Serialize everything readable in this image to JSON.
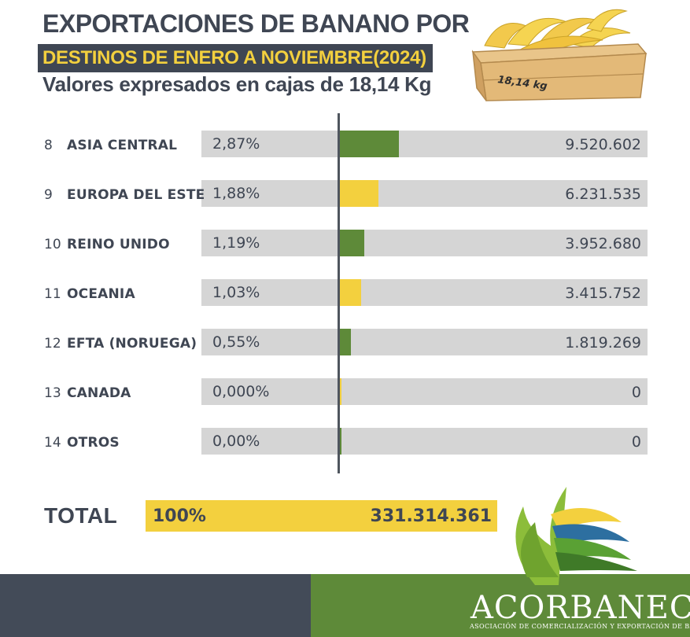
{
  "header": {
    "title_line1": "EXPORTACIONES DE BANANO POR",
    "title_line2": "DESTINOS DE ENERO A NOVIEMBRE(2024)",
    "subtitle": "Valores expresados en cajas de 18,14 Kg",
    "crate_label": "18,14 kg"
  },
  "chart_data": {
    "type": "bar",
    "orientation": "horizontal",
    "rows": [
      {
        "rank": "8",
        "name": "ASIA CENTRAL",
        "pct_label": "2,87%",
        "pct": 2.87,
        "value_label": "9.520.602",
        "value": 9520602,
        "color": "#5e8a39"
      },
      {
        "rank": "9",
        "name": "EUROPA DEL ESTE",
        "pct_label": "1,88%",
        "pct": 1.88,
        "value_label": "6.231.535",
        "value": 6231535,
        "color": "#f3d03e"
      },
      {
        "rank": "10",
        "name": "REINO UNIDO",
        "pct_label": "1,19%",
        "pct": 1.19,
        "value_label": "3.952.680",
        "value": 3952680,
        "color": "#5e8a39"
      },
      {
        "rank": "11",
        "name": "OCEANIA",
        "pct_label": "1,03%",
        "pct": 1.03,
        "value_label": "3.415.752",
        "value": 3415752,
        "color": "#f3d03e"
      },
      {
        "rank": "12",
        "name": "EFTA (NORUEGA)",
        "pct_label": "0,55%",
        "pct": 0.55,
        "value_label": "1.819.269",
        "value": 1819269,
        "color": "#5e8a39"
      },
      {
        "rank": "13",
        "name": "CANADA",
        "pct_label": "0,000%",
        "pct": 0.0,
        "value_label": "0",
        "value": 0,
        "color": "#f3d03e"
      },
      {
        "rank": "14",
        "name": "OTROS",
        "pct_label": "0,00%",
        "pct": 0.0,
        "value_label": "0",
        "value": 0,
        "color": "#5e8a39"
      }
    ],
    "total": {
      "label": "TOTAL",
      "pct_label": "100%",
      "value_label": "331.314.361",
      "value": 331314361
    }
  },
  "footer": {
    "brand": "ACORBANEC",
    "tagline": "ASOCIACIÓN DE COMERCIALIZACIÓN Y EXPORTACIÓN DE BANANO"
  },
  "colors": {
    "dark": "#3f4653",
    "yellow": "#f3d03e",
    "green": "#5e8a39",
    "bar_bg": "#d5d5d5"
  }
}
